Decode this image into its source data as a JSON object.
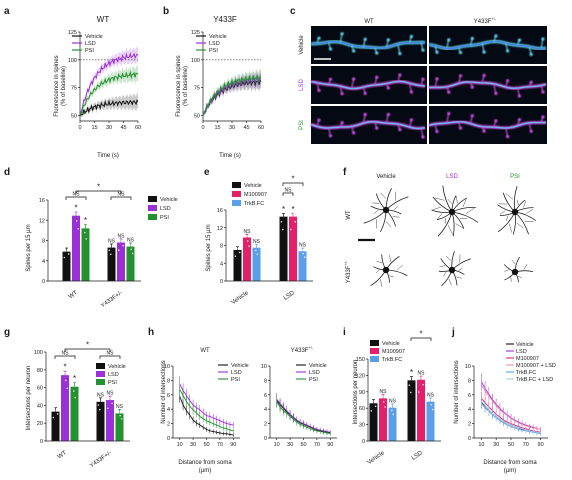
{
  "colors": {
    "vehicle": "#111111",
    "lsd": "#9b30d9",
    "psi": "#23912f",
    "m100907": "#e5206b",
    "trkb": "#5aa0e8"
  },
  "figure": {
    "panel_labels": {
      "a": "a",
      "b": "b",
      "c": "c",
      "d": "d",
      "e": "e",
      "f": "f",
      "g": "g",
      "h": "h",
      "i": "i",
      "j": "j"
    },
    "legend_vlp": {
      "vehicle": "Vehicle",
      "lsd": "LSD",
      "psi": "PSI"
    },
    "legend_vmt": {
      "vehicle": "Vehicle",
      "m100907": "M100907",
      "trkb": "TrkB.FC"
    },
    "legend_j": {
      "vehicle": "Vehicle",
      "lsd": "LSD",
      "m100907": "M100907",
      "m100907_lsd": "M100907 + LSD",
      "trkb": "TrkB.FC",
      "trkb_lsd": "TrkB.FC + LSD"
    },
    "sig": {
      "star": "*",
      "ns": "NS"
    },
    "panel_a": {
      "title": "WT",
      "ylabel": "Fluorescence in spines",
      "ylabel2": "(% of baseline)",
      "xlabel": "Time (s)"
    },
    "panel_b": {
      "title": "Y433F",
      "ylabel": "Fluorescence in spines",
      "ylabel2": "(% of baseline)",
      "xlabel": "Time (s)"
    },
    "panel_c": {
      "col_wt": "WT",
      "col_mut": "Y433F",
      "col_mut_sup": "+/-",
      "rows": [
        "Vehicle",
        "LSD",
        "PSI"
      ]
    },
    "panel_d": {
      "ylabel": "Spines per 15 µm",
      "groups": [
        "WT",
        "Y433F"
      ],
      "group_sup": "+/-"
    },
    "panel_e": {
      "ylabel": "Spines per 15 µm",
      "groups": [
        "Vehicle",
        "LSD"
      ]
    },
    "panel_f": {
      "cols": [
        "Vehicle",
        "LSD",
        "PSI"
      ],
      "rows": [
        "WT",
        "Y433F"
      ],
      "row_sup": "+/-"
    },
    "panel_g": {
      "ylabel": "Intersections per neuron",
      "groups": [
        "WT",
        "Y433F"
      ],
      "group_sup": "+/-"
    },
    "panel_h": {
      "ylabel": "Number of intersections",
      "xlabel": "Distance from soma",
      "xunit": "(µm)",
      "title_wt": "WT",
      "title_mut": "Y433F",
      "title_sup": "+/-"
    },
    "panel_i": {
      "ylabel": "Intersections per neuron",
      "groups": [
        "Vehicle",
        "LSD"
      ]
    },
    "panel_j": {
      "ylabel": "Number of intersections",
      "xlabel": "Distance from soma",
      "xunit": "(µm)"
    }
  },
  "chart_data": [
    {
      "id": "a",
      "type": "line",
      "title": "WT",
      "xlabel": "Time (s)",
      "ylabel": "Fluorescence in spines (% of baseline)",
      "xlim": [
        0,
        60
      ],
      "ylim": [
        45,
        125
      ],
      "yticks": [
        50,
        75,
        100,
        125
      ],
      "xticks": [
        0,
        15,
        30,
        45,
        60
      ],
      "baseline": 100,
      "series": [
        {
          "name": "Vehicle",
          "y0": 50,
          "y1": 62
        },
        {
          "name": "LSD",
          "y0": 50,
          "y1": 104
        },
        {
          "name": "PSI",
          "y0": 50,
          "y1": 87
        }
      ]
    },
    {
      "id": "b",
      "type": "line",
      "title": "Y433F",
      "xlabel": "Time (s)",
      "ylabel": "Fluorescence in spines (% of baseline)",
      "xlim": [
        0,
        60
      ],
      "ylim": [
        45,
        125
      ],
      "yticks": [
        50,
        75,
        100,
        125
      ],
      "xticks": [
        0,
        15,
        30,
        45,
        60
      ],
      "baseline": 100,
      "series": [
        {
          "name": "Vehicle",
          "y0": 50,
          "y1": 80
        },
        {
          "name": "LSD",
          "y0": 50,
          "y1": 82
        },
        {
          "name": "PSI",
          "y0": 50,
          "y1": 84
        }
      ]
    },
    {
      "id": "d",
      "type": "bar",
      "ylabel": "Spines per 15 µm",
      "ylim": [
        0,
        16
      ],
      "yticks": [
        0,
        4,
        8,
        12,
        16
      ],
      "categories": [
        "WT",
        "Y433F+/-"
      ],
      "series": [
        {
          "name": "Vehicle",
          "values": [
            5.8,
            6.6
          ]
        },
        {
          "name": "LSD",
          "values": [
            12.9,
            7.6
          ]
        },
        {
          "name": "PSI",
          "values": [
            10.4,
            6.8
          ]
        }
      ]
    },
    {
      "id": "e",
      "type": "bar",
      "ylabel": "Spines per 15 µm",
      "ylim": [
        0,
        16
      ],
      "yticks": [
        0,
        4,
        8,
        12,
        16
      ],
      "categories": [
        "Vehicle",
        "LSD"
      ],
      "series": [
        {
          "name": "Vehicle",
          "values": [
            7.0,
            14.5
          ]
        },
        {
          "name": "M100907",
          "values": [
            9.8,
            14.5
          ]
        },
        {
          "name": "TrkB.FC",
          "values": [
            7.5,
            6.7
          ]
        }
      ]
    },
    {
      "id": "g",
      "type": "bar",
      "ylabel": "Intersections per neuron",
      "ylim": [
        0,
        100
      ],
      "yticks": [
        0,
        20,
        40,
        60,
        80,
        100
      ],
      "categories": [
        "WT",
        "Y433F+/-"
      ],
      "series": [
        {
          "name": "Vehicle",
          "values": [
            33,
            44
          ]
        },
        {
          "name": "LSD",
          "values": [
            74,
            46
          ]
        },
        {
          "name": "PSI",
          "values": [
            61,
            31
          ]
        }
      ]
    },
    {
      "id": "h_wt",
      "type": "line",
      "title": "WT",
      "xlabel": "Distance from soma (µm)",
      "ylabel": "Number of intersections",
      "xlim": [
        0,
        100
      ],
      "ylim": [
        0,
        10
      ],
      "yticks": [
        0,
        2,
        4,
        6,
        8,
        10
      ],
      "xticks": [
        10,
        30,
        50,
        70,
        90
      ],
      "x": [
        10,
        15,
        20,
        25,
        30,
        35,
        40,
        45,
        50,
        55,
        60,
        65,
        70,
        75,
        80,
        85,
        90
      ],
      "series": [
        {
          "name": "Vehicle",
          "values": [
            5.8,
            4.6,
            3.8,
            3.2,
            2.5,
            2.1,
            1.8,
            1.5,
            1.2,
            1.0,
            0.9,
            0.8,
            0.7,
            0.6,
            0.6,
            0.5,
            0.4
          ]
        },
        {
          "name": "LSD",
          "values": [
            7.5,
            6.6,
            5.9,
            5.2,
            4.6,
            4.2,
            3.9,
            3.5,
            3.1,
            3.0,
            2.8,
            2.6,
            2.4,
            2.2,
            2.0,
            1.9,
            1.8
          ]
        },
        {
          "name": "PSI",
          "values": [
            6.8,
            5.9,
            5.1,
            4.4,
            3.9,
            3.5,
            3.0,
            2.7,
            2.4,
            2.2,
            2.0,
            1.8,
            1.6,
            1.4,
            1.3,
            1.1,
            1.0
          ]
        }
      ]
    },
    {
      "id": "h_mut",
      "type": "line",
      "title": "Y433F+/-",
      "xlabel": "Distance from soma (µm)",
      "ylabel": "Number of intersections",
      "xlim": [
        0,
        100
      ],
      "ylim": [
        0,
        10
      ],
      "yticks": [
        0,
        2,
        4,
        6,
        8,
        10
      ],
      "xticks": [
        10,
        30,
        50,
        70,
        90
      ],
      "x": [
        10,
        15,
        20,
        25,
        30,
        35,
        40,
        45,
        50,
        55,
        60,
        65,
        70,
        75,
        80,
        85,
        90
      ],
      "series": [
        {
          "name": "Vehicle",
          "values": [
            5.2,
            4.6,
            4.1,
            3.6,
            3.2,
            2.8,
            2.4,
            2.1,
            1.9,
            1.7,
            1.5,
            1.3,
            1.1,
            1.0,
            0.9,
            0.8,
            0.7
          ]
        },
        {
          "name": "LSD",
          "values": [
            5.4,
            4.8,
            4.3,
            3.8,
            3.3,
            2.9,
            2.5,
            2.2,
            2.0,
            1.8,
            1.6,
            1.4,
            1.2,
            1.1,
            1.0,
            0.9,
            0.8
          ]
        },
        {
          "name": "PSI",
          "values": [
            5.0,
            4.3,
            3.8,
            3.4,
            3.0,
            2.6,
            2.2,
            1.9,
            1.7,
            1.5,
            1.3,
            1.1,
            1.0,
            0.9,
            0.8,
            0.7,
            0.6
          ]
        }
      ]
    },
    {
      "id": "i",
      "type": "bar",
      "ylabel": "Intersections per neuron",
      "ylim": [
        0,
        150
      ],
      "yticks": [
        0,
        30,
        60,
        90,
        120,
        150
      ],
      "categories": [
        "Vehicle",
        "LSD"
      ],
      "series": [
        {
          "name": "Vehicle",
          "values": [
            69,
            111
          ]
        },
        {
          "name": "M100907",
          "values": [
            78,
            112
          ]
        },
        {
          "name": "TrkB.FC",
          "values": [
            61,
            72
          ]
        }
      ]
    },
    {
      "id": "j",
      "type": "line",
      "xlabel": "Distance from soma (µm)",
      "ylabel": "Number of intersections",
      "xlim": [
        0,
        100
      ],
      "ylim": [
        0,
        10
      ],
      "yticks": [
        0,
        2,
        4,
        6,
        8,
        10
      ],
      "xticks": [
        10,
        30,
        50,
        70,
        90
      ],
      "x": [
        10,
        15,
        20,
        25,
        30,
        35,
        40,
        45,
        50,
        55,
        60,
        65,
        70,
        75,
        80,
        85,
        90
      ],
      "series": [
        {
          "name": "Vehicle",
          "values": [
            5.0,
            4.4,
            3.9,
            3.4,
            3.0,
            2.6,
            2.3,
            2.0,
            1.8,
            1.6,
            1.4,
            1.2,
            1.1,
            1.0,
            0.9,
            0.8,
            0.7
          ]
        },
        {
          "name": "LSD",
          "values": [
            7.8,
            6.9,
            6.1,
            5.3,
            4.7,
            4.1,
            3.6,
            3.2,
            2.8,
            2.5,
            2.2,
            2.0,
            1.8,
            1.6,
            1.5,
            1.3,
            1.2
          ]
        },
        {
          "name": "M100907",
          "values": [
            5.5,
            4.9,
            4.3,
            3.8,
            3.3,
            2.9,
            2.5,
            2.2,
            2.0,
            1.8,
            1.6,
            1.4,
            1.3,
            1.1,
            1.0,
            0.9,
            0.8
          ]
        },
        {
          "name": "M100907 + LSD",
          "values": [
            7.4,
            6.6,
            5.8,
            5.1,
            4.5,
            3.9,
            3.5,
            3.1,
            2.7,
            2.4,
            2.1,
            1.9,
            1.7,
            1.5,
            1.4,
            1.3,
            1.2
          ]
        },
        {
          "name": "TrkB.FC",
          "values": [
            4.8,
            4.2,
            3.7,
            3.2,
            2.8,
            2.4,
            2.1,
            1.8,
            1.6,
            1.4,
            1.2,
            1.1,
            1.0,
            0.9,
            0.8,
            0.7,
            0.6
          ]
        },
        {
          "name": "TrkB.FC + LSD",
          "values": [
            5.1,
            4.5,
            3.9,
            3.4,
            3.0,
            2.6,
            2.3,
            2.0,
            1.8,
            1.6,
            1.4,
            1.3,
            1.1,
            1.0,
            0.9,
            0.8,
            0.7
          ]
        }
      ]
    }
  ]
}
